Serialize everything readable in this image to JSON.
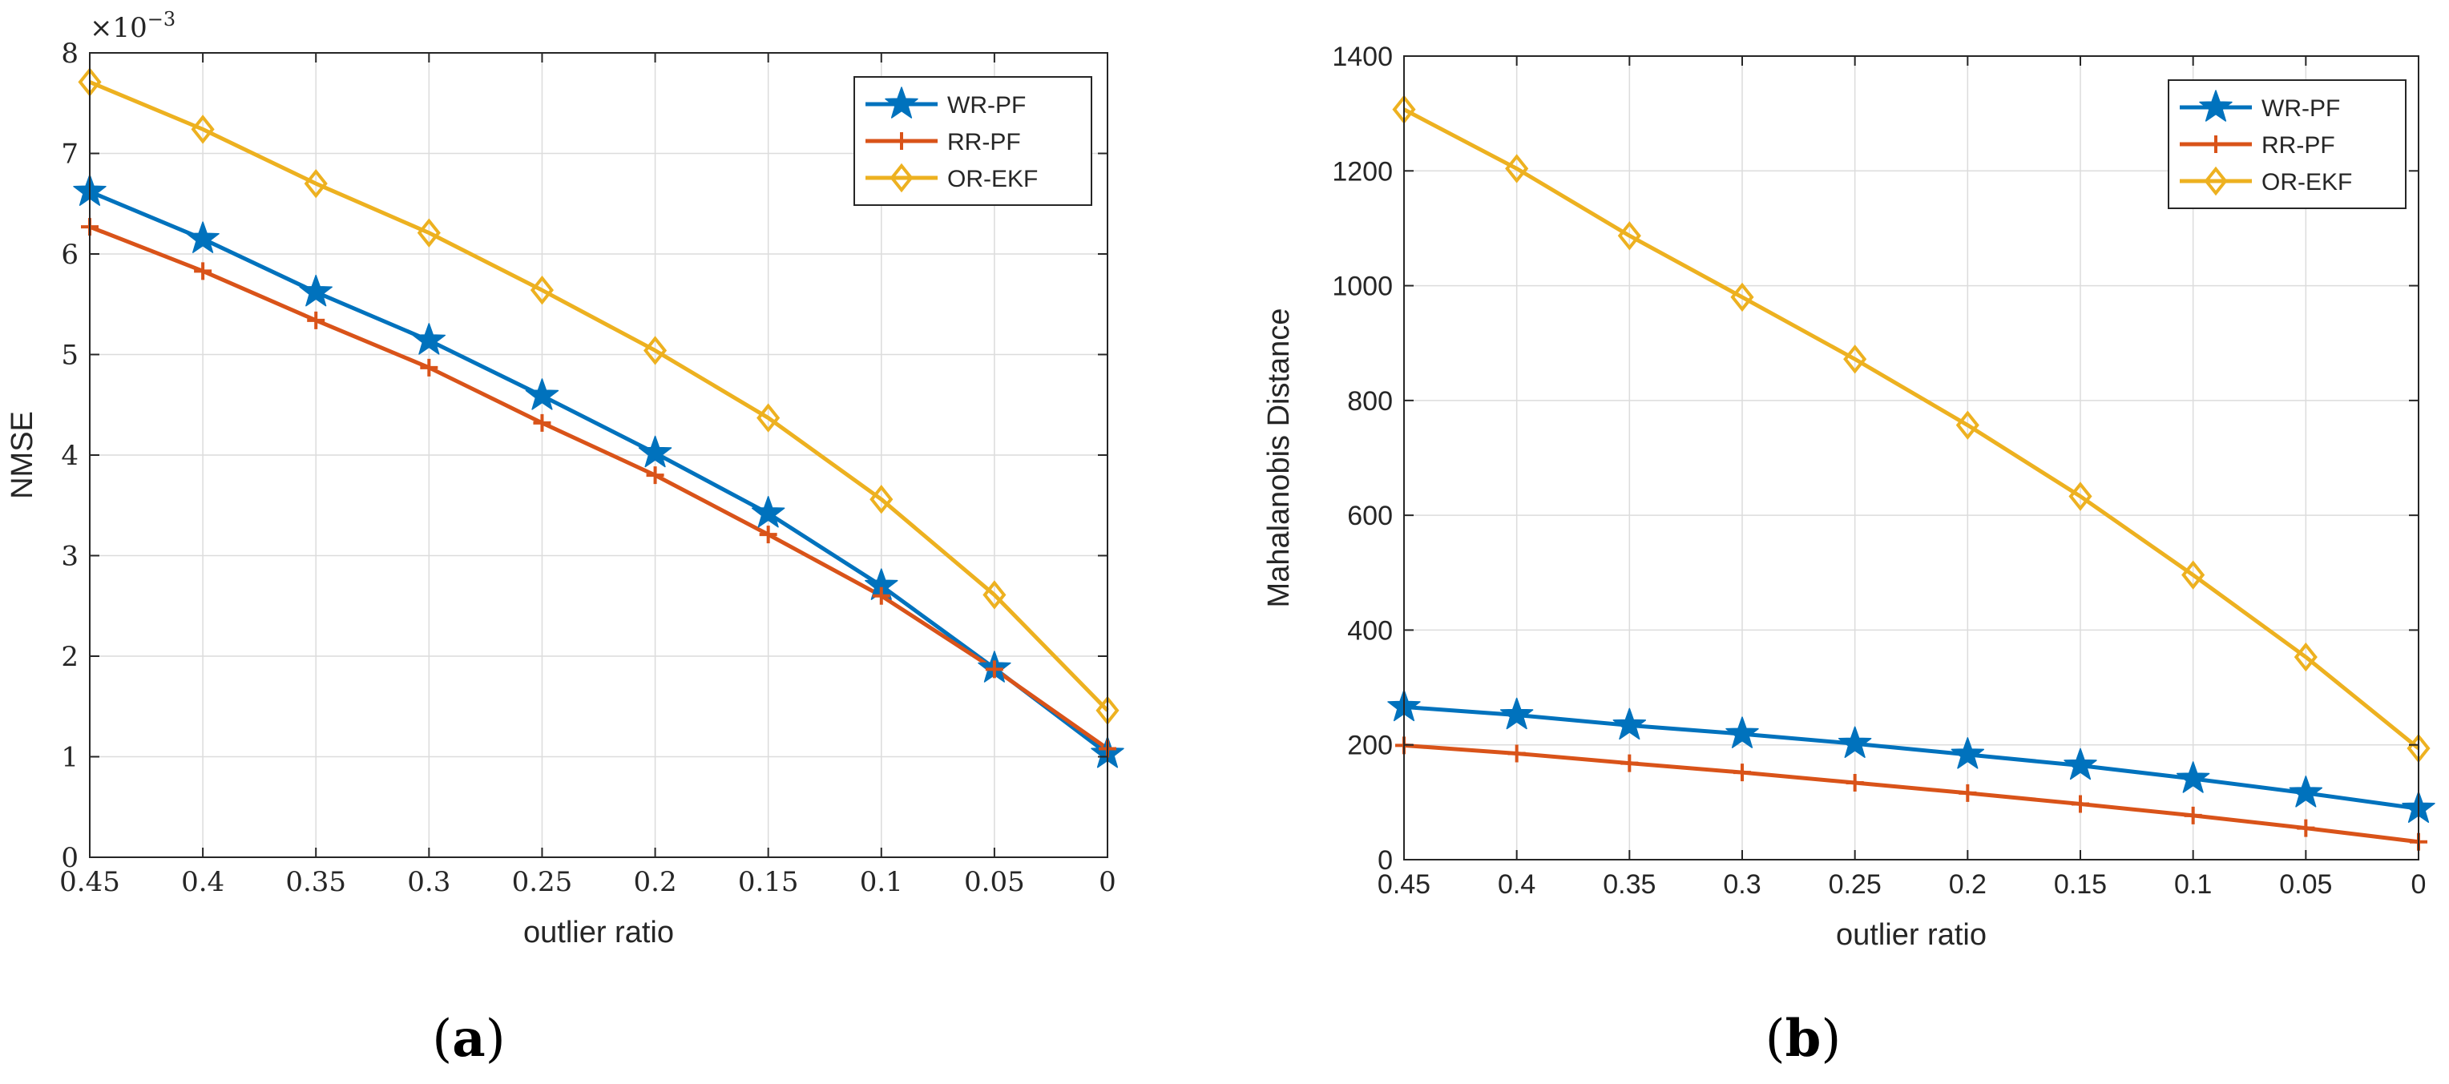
{
  "chart_data": [
    {
      "type": "line",
      "panel_label": "(a)",
      "panel_prefix": "(",
      "panel_letter": "a",
      "panel_suffix": ")",
      "xlabel": "outlier ratio",
      "ylabel": "NMSE",
      "y_exponent_label": "×10",
      "y_exponent_power": "−3",
      "x": [
        0.45,
        0.4,
        0.35,
        0.3,
        0.25,
        0.2,
        0.15,
        0.1,
        0.05,
        0
      ],
      "xtick_labels": [
        "0.45",
        "0.4",
        "0.35",
        "0.3",
        "0.25",
        "0.2",
        "0.15",
        "0.1",
        "0.05",
        "0"
      ],
      "ylim": [
        0,
        8
      ],
      "yticks": [
        0,
        1,
        2,
        3,
        4,
        5,
        6,
        7,
        8
      ],
      "ytick_labels": [
        "0",
        "1",
        "2",
        "3",
        "4",
        "5",
        "6",
        "7",
        "8"
      ],
      "grid": true,
      "legend_position": "top-right",
      "series": [
        {
          "name": "WR-PF",
          "color": "#0072BD",
          "marker": "star",
          "values": [
            6.62,
            6.15,
            5.62,
            5.14,
            4.59,
            4.02,
            3.42,
            2.7,
            1.88,
            1.03
          ]
        },
        {
          "name": "RR-PF",
          "color": "#D95319",
          "marker": "plus",
          "values": [
            6.27,
            5.83,
            5.34,
            4.87,
            4.32,
            3.8,
            3.21,
            2.6,
            1.87,
            1.08
          ]
        },
        {
          "name": "OR-EKF",
          "color": "#EDB120",
          "marker": "diamond",
          "values": [
            7.71,
            7.24,
            6.7,
            6.21,
            5.64,
            5.04,
            4.37,
            3.56,
            2.61,
            1.46
          ]
        }
      ]
    },
    {
      "type": "line",
      "panel_label": "(b)",
      "panel_prefix": "(",
      "panel_letter": "b",
      "panel_suffix": ")",
      "xlabel": "outlier ratio",
      "ylabel": "Mahalanobis Distance",
      "x": [
        0.45,
        0.4,
        0.35,
        0.3,
        0.25,
        0.2,
        0.15,
        0.1,
        0.05,
        0
      ],
      "xtick_labels": [
        "0.45",
        "0.4",
        "0.35",
        "0.3",
        "0.25",
        "0.2",
        "0.15",
        "0.1",
        "0.05",
        "0"
      ],
      "ylim": [
        0,
        1400
      ],
      "yticks": [
        0,
        200,
        400,
        600,
        800,
        1000,
        1200,
        1400
      ],
      "ytick_labels": [
        "0",
        "200",
        "400",
        "600",
        "800",
        "1000",
        "1200",
        "1400"
      ],
      "grid": true,
      "legend_position": "top-right",
      "series": [
        {
          "name": "WR-PF",
          "color": "#0072BD",
          "marker": "star",
          "values": [
            266,
            252,
            234,
            219,
            202,
            183,
            164,
            141,
            116,
            89
          ]
        },
        {
          "name": "RR-PF",
          "color": "#D95319",
          "marker": "plus",
          "values": [
            199,
            185,
            168,
            152,
            134,
            116,
            97,
            77,
            55,
            31
          ]
        },
        {
          "name": "OR-EKF",
          "color": "#EDB120",
          "marker": "diamond",
          "values": [
            1307,
            1204,
            1087,
            980,
            872,
            757,
            633,
            496,
            353,
            194
          ]
        }
      ]
    }
  ]
}
